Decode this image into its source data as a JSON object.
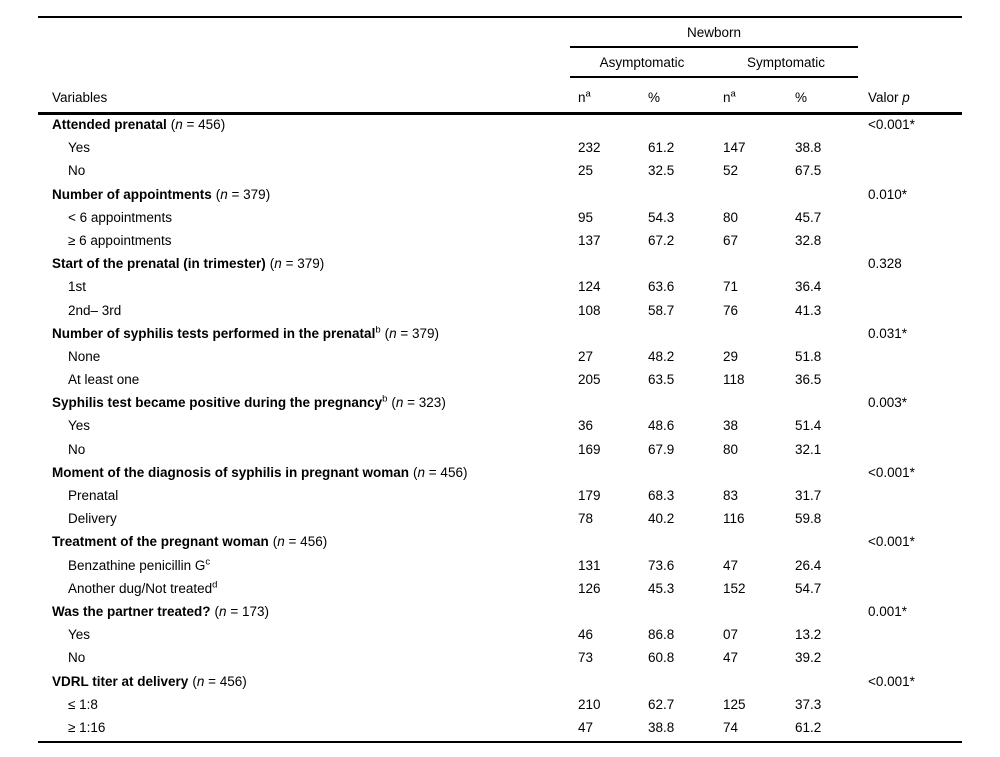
{
  "header": {
    "variables": "Variables",
    "group": "Newborn",
    "subgroup_1": "Asymptomatic",
    "subgroup_2": "Symptomatic",
    "n_label": "n",
    "n_sup": "a",
    "pct_label": "%",
    "p_label_prefix": "Valor",
    "p_label_italic": "p"
  },
  "rows": [
    {
      "type": "section",
      "label": "Attended prenatal",
      "sup": "",
      "note": "(n = 456)",
      "p": "<0.001*"
    },
    {
      "type": "item",
      "label": "Yes",
      "sup": "",
      "n1": "232",
      "pct1": "61.2",
      "n2": "147",
      "pct2": "38.8"
    },
    {
      "type": "item",
      "label": "No",
      "sup": "",
      "n1": "25",
      "pct1": "32.5",
      "n2": "52",
      "pct2": "67.5"
    },
    {
      "type": "section",
      "label": "Number of appointments",
      "sup": "",
      "note": "(n = 379)",
      "p": "0.010*"
    },
    {
      "type": "item",
      "label": "< 6 appointments",
      "sup": "",
      "n1": "95",
      "pct1": "54.3",
      "n2": "80",
      "pct2": "45.7"
    },
    {
      "type": "item",
      "label": "≥ 6 appointments",
      "sup": "",
      "n1": "137",
      "pct1": "67.2",
      "n2": "67",
      "pct2": "32.8"
    },
    {
      "type": "section",
      "label": "Start of the prenatal (in trimester)",
      "sup": "",
      "note": "(n = 379)",
      "p": "0.328"
    },
    {
      "type": "item",
      "label": "1st",
      "sup": "",
      "n1": "124",
      "pct1": "63.6",
      "n2": "71",
      "pct2": "36.4"
    },
    {
      "type": "item",
      "label": "2nd– 3rd",
      "sup": "",
      "n1": "108",
      "pct1": "58.7",
      "n2": "76",
      "pct2": "41.3"
    },
    {
      "type": "section",
      "label": "Number of syphilis tests performed in the prenatal",
      "sup": "b",
      "note": "(n = 379)",
      "p": "0.031*"
    },
    {
      "type": "item",
      "label": "None",
      "sup": "",
      "n1": "27",
      "pct1": "48.2",
      "n2": "29",
      "pct2": "51.8"
    },
    {
      "type": "item",
      "label": "At least one",
      "sup": "",
      "n1": "205",
      "pct1": "63.5",
      "n2": "118",
      "pct2": "36.5"
    },
    {
      "type": "section",
      "label": "Syphilis test became positive during the pregnancy",
      "sup": "b",
      "note": "(n = 323)",
      "p": "0.003*"
    },
    {
      "type": "item",
      "label": "Yes",
      "sup": "",
      "n1": "36",
      "pct1": "48.6",
      "n2": "38",
      "pct2": "51.4"
    },
    {
      "type": "item",
      "label": "No",
      "sup": "",
      "n1": "169",
      "pct1": "67.9",
      "n2": "80",
      "pct2": "32.1"
    },
    {
      "type": "section",
      "label": "Moment of the diagnosis of syphilis in pregnant woman",
      "sup": "",
      "note": "(n = 456)",
      "p": "<0.001*"
    },
    {
      "type": "item",
      "label": "Prenatal",
      "sup": "",
      "n1": "179",
      "pct1": "68.3",
      "n2": "83",
      "pct2": "31.7"
    },
    {
      "type": "item",
      "label": "Delivery",
      "sup": "",
      "n1": "78",
      "pct1": "40.2",
      "n2": "116",
      "pct2": "59.8"
    },
    {
      "type": "section",
      "label": "Treatment of the pregnant woman",
      "sup": "",
      "note": "(n = 456)",
      "p": "<0.001*"
    },
    {
      "type": "item",
      "label": "Benzathine penicillin G",
      "sup": "c",
      "n1": "131",
      "pct1": "73.6",
      "n2": "47",
      "pct2": "26.4"
    },
    {
      "type": "item",
      "label": "Another dug/Not treated",
      "sup": "d",
      "n1": "126",
      "pct1": "45.3",
      "n2": "152",
      "pct2": "54.7"
    },
    {
      "type": "section",
      "label": "Was the partner treated?",
      "sup": "",
      "note": "(n = 173)",
      "p": "0.001*"
    },
    {
      "type": "item",
      "label": "Yes",
      "sup": "",
      "n1": "46",
      "pct1": "86.8",
      "n2": "07",
      "pct2": "13.2"
    },
    {
      "type": "item",
      "label": "No",
      "sup": "",
      "n1": "73",
      "pct1": "60.8",
      "n2": "47",
      "pct2": "39.2"
    },
    {
      "type": "section",
      "label": "VDRL titer at delivery",
      "sup": "",
      "note": "(n = 456)",
      "p": "<0.001*"
    },
    {
      "type": "item",
      "label": "≤ 1:8",
      "sup": "",
      "n1": "210",
      "pct1": "62.7",
      "n2": "125",
      "pct2": "37.3"
    },
    {
      "type": "item",
      "label": "≥ 1:16",
      "sup": "",
      "n1": "47",
      "pct1": "38.8",
      "n2": "74",
      "pct2": "61.2"
    }
  ]
}
